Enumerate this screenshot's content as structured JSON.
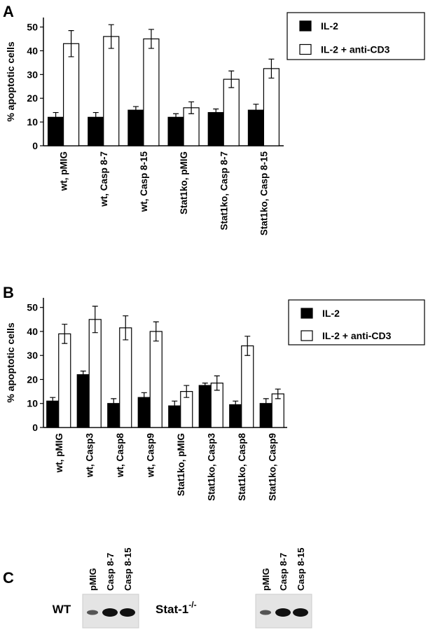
{
  "panel_labels": [
    "A",
    "B",
    "C"
  ],
  "chart_data": [
    {
      "type": "bar",
      "y_label": "% apoptotic cells",
      "categories": [
        "wt, pMIG",
        "wt, Casp 8-7",
        "wt, Casp 8-15",
        "Stat1ko, pMIG",
        "Stat1ko, Casp 8-7",
        "Stat1ko, Casp 8-15"
      ],
      "series": [
        {
          "name": "IL-2",
          "color": "#000000",
          "values": [
            12,
            12,
            15,
            12,
            14,
            15
          ],
          "errors": [
            2,
            2,
            1.5,
            1.5,
            1.5,
            2.5
          ]
        },
        {
          "name": "IL-2 + anti-CD3",
          "color": "#ffffff",
          "values": [
            43,
            46,
            45,
            16,
            28,
            32.5
          ],
          "errors": [
            5.5,
            5,
            4,
            2.5,
            3.5,
            4
          ]
        }
      ],
      "ylim": [
        0,
        54
      ],
      "yticks": [
        0,
        10,
        20,
        30,
        40,
        50
      ],
      "legend": "right"
    },
    {
      "type": "bar",
      "y_label": "% apoptotic cells",
      "categories": [
        "wt, pMIG",
        "wt, Casp3",
        "wt, Casp8",
        "wt, Casp9",
        "Stat1ko, pMIG",
        "Stat1ko, Casp3",
        "Stat1ko, Casp8",
        "Stat1ko, Casp9"
      ],
      "series": [
        {
          "name": "IL-2",
          "color": "#000000",
          "values": [
            11,
            22,
            10,
            12.5,
            9,
            17.5,
            9.5,
            10
          ],
          "errors": [
            1.5,
            1.5,
            2,
            2,
            2,
            1,
            1.5,
            2
          ]
        },
        {
          "name": "IL-2 + anti-CD3",
          "color": "#ffffff",
          "values": [
            39,
            45,
            41.5,
            40,
            15,
            18.5,
            34,
            14
          ],
          "errors": [
            4,
            5.5,
            5,
            4,
            2.5,
            3,
            4,
            2
          ]
        }
      ],
      "ylim": [
        0,
        54
      ],
      "yticks": [
        0,
        10,
        20,
        30,
        40,
        50
      ],
      "legend": "right"
    }
  ],
  "blot": {
    "groups": [
      {
        "label": "WT",
        "lanes": [
          "pMIG",
          "Casp 8-7",
          "Casp 8-15"
        ]
      },
      {
        "label": "Stat-1",
        "superscript": "-/-",
        "lanes": [
          "pMIG",
          "Casp 8-7",
          "Casp 8-15"
        ]
      }
    ]
  }
}
